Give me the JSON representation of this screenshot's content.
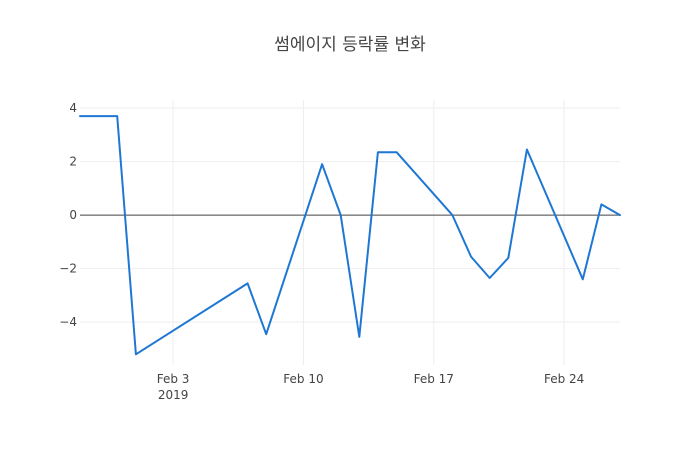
{
  "chart_data": {
    "type": "line",
    "title": "썸에이지 등락률 변화",
    "xlabel": "",
    "ylabel": "",
    "x_dates": [
      "2019-01-29",
      "2019-01-30",
      "2019-01-31",
      "2019-02-01",
      "2019-02-07",
      "2019-02-08",
      "2019-02-11",
      "2019-02-12",
      "2019-02-13",
      "2019-02-14",
      "2019-02-15",
      "2019-02-18",
      "2019-02-19",
      "2019-02-20",
      "2019-02-21",
      "2019-02-22",
      "2019-02-25",
      "2019-02-26",
      "2019-02-27"
    ],
    "series": [
      {
        "values": [
          3.7,
          3.7,
          3.7,
          -5.2,
          -2.55,
          -4.45,
          1.9,
          0.0,
          -4.55,
          2.35,
          2.35,
          0.0,
          -1.55,
          -2.35,
          -1.6,
          2.45,
          -2.4,
          0.4,
          0.0
        ],
        "color": "#1f77d4"
      }
    ],
    "ylim": [
      -5.6,
      4.3
    ],
    "xlim": [
      "2019-01-29",
      "2019-02-27"
    ],
    "y_ticks": [
      4,
      2,
      0,
      -2,
      -4
    ],
    "y_tick_labels": [
      "4",
      "2",
      "0",
      "−2",
      "−4"
    ],
    "x_ticks": [
      "2019-02-03",
      "2019-02-10",
      "2019-02-17",
      "2019-02-24"
    ],
    "x_tick_labels": [
      "Feb 3",
      "Feb 10",
      "Feb 17",
      "Feb 24"
    ],
    "x_year_label": "2019",
    "grid": true,
    "zero_line": true,
    "legend": "none"
  }
}
